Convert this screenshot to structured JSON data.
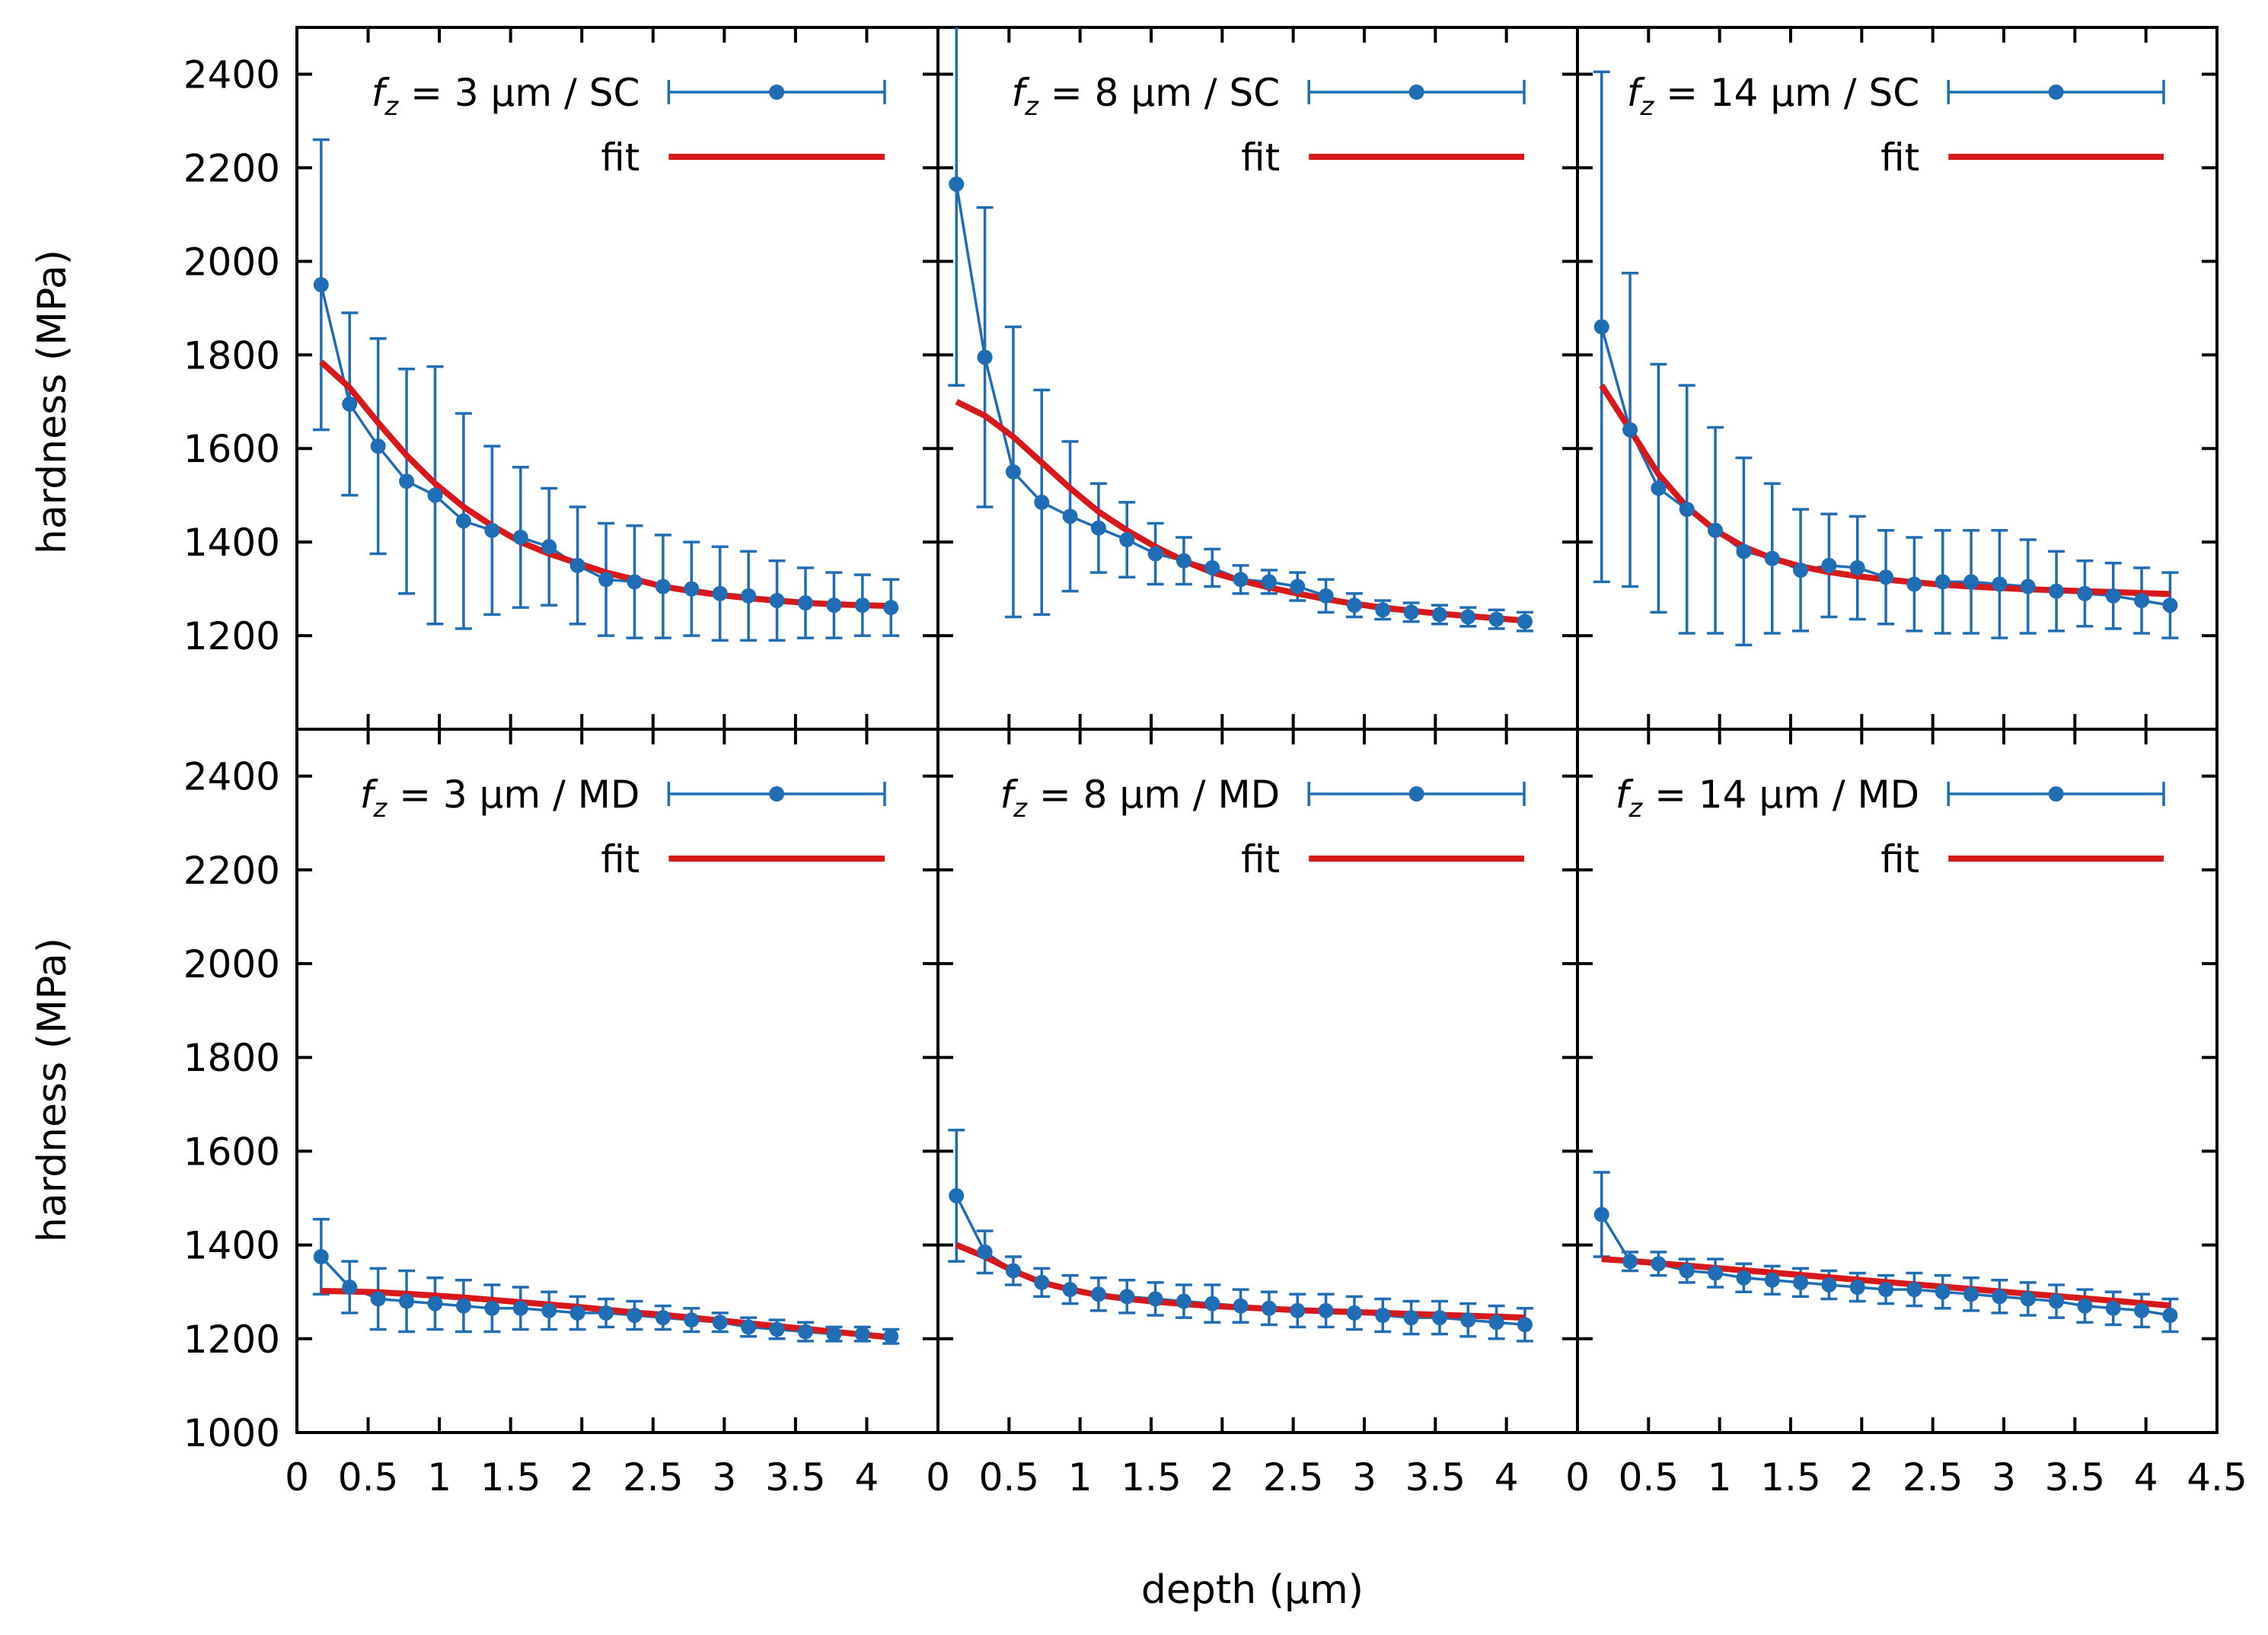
{
  "colors": {
    "data": "#1f6db5",
    "fit": "#d7191c",
    "axis": "#000000"
  },
  "chart_data": {
    "type": "scatter",
    "layout": "2x3 panel grid, shared axes",
    "xlabel": "depth (µm)",
    "ylabel": "hardness (MPa)",
    "xlim": [
      0,
      4.5
    ],
    "ylim_top_row": [
      1000,
      2500
    ],
    "ylim_bottom_row": [
      1000,
      2500
    ],
    "x_ticks": [
      0,
      0.5,
      1,
      1.5,
      2,
      2.5,
      3,
      3.5,
      4,
      4.5
    ],
    "x_tick_labels_left": [
      "0",
      "0.5",
      "1",
      "1.5",
      "2",
      "2.5",
      "3",
      "3.5",
      "4"
    ],
    "x_tick_labels_right": [
      "0",
      "0.5",
      "1",
      "1.5",
      "2",
      "2.5",
      "3",
      "3.5",
      "4",
      "4.5"
    ],
    "y_ticks_top": [
      1200,
      1400,
      1600,
      1800,
      2000,
      2200,
      2400
    ],
    "y_ticks_bottom": [
      1000,
      1200,
      1400,
      1600,
      1800,
      2000,
      2200,
      2400
    ],
    "legend": {
      "placement": "top-right",
      "fit_label": "fit"
    },
    "panels": [
      {
        "label_f": "f",
        "label_sub": "z",
        "label_rest": " = 3 µm / SC",
        "x": [
          0.17,
          0.37,
          0.57,
          0.77,
          0.97,
          1.17,
          1.37,
          1.57,
          1.77,
          1.97,
          2.17,
          2.37,
          2.57,
          2.77,
          2.97,
          3.17,
          3.37,
          3.57,
          3.77,
          3.97,
          4.17
        ],
        "y": [
          1950,
          1695,
          1605,
          1530,
          1500,
          1445,
          1425,
          1410,
          1390,
          1350,
          1320,
          1315,
          1305,
          1300,
          1290,
          1285,
          1275,
          1270,
          1265,
          1265,
          1260
        ],
        "err": [
          310,
          195,
          230,
          240,
          275,
          230,
          180,
          150,
          125,
          125,
          120,
          120,
          110,
          100,
          100,
          95,
          85,
          75,
          70,
          65,
          60
        ],
        "fit_x": [
          0.17,
          0.37,
          0.57,
          0.77,
          0.97,
          1.17,
          1.37,
          1.57,
          1.77,
          1.97,
          2.17,
          2.37,
          2.57,
          2.77,
          2.97,
          3.17,
          3.37,
          3.57,
          3.77,
          3.97,
          4.17
        ],
        "fit_y": [
          1785,
          1730,
          1655,
          1585,
          1525,
          1475,
          1435,
          1400,
          1375,
          1355,
          1335,
          1320,
          1305,
          1295,
          1287,
          1280,
          1275,
          1270,
          1267,
          1265,
          1263
        ]
      },
      {
        "label_f": "f",
        "label_sub": "z",
        "label_rest": " = 8 µm / SC",
        "x": [
          0.13,
          0.33,
          0.53,
          0.73,
          0.93,
          1.13,
          1.33,
          1.53,
          1.73,
          1.93,
          2.13,
          2.33,
          2.53,
          2.73,
          2.93,
          3.13,
          3.33,
          3.53,
          3.73,
          3.93,
          4.13
        ],
        "y": [
          2165,
          1795,
          1550,
          1485,
          1455,
          1430,
          1405,
          1375,
          1360,
          1345,
          1320,
          1315,
          1305,
          1285,
          1265,
          1255,
          1250,
          1245,
          1240,
          1235,
          1230
        ],
        "err": [
          430,
          320,
          310,
          240,
          160,
          95,
          80,
          65,
          50,
          40,
          30,
          25,
          30,
          35,
          25,
          20,
          20,
          20,
          20,
          20,
          20
        ],
        "fit_x": [
          0.13,
          0.33,
          0.53,
          0.73,
          0.93,
          1.13,
          1.33,
          1.53,
          1.73,
          1.93,
          2.13,
          2.33,
          2.53,
          2.73,
          2.93,
          3.13,
          3.33,
          3.53,
          3.73,
          3.93,
          4.13
        ],
        "fit_y": [
          1700,
          1670,
          1625,
          1570,
          1515,
          1465,
          1425,
          1390,
          1360,
          1335,
          1318,
          1303,
          1290,
          1278,
          1268,
          1260,
          1253,
          1247,
          1242,
          1237,
          1232
        ]
      },
      {
        "label_f": "f",
        "label_sub": "z",
        "label_rest": " = 14 µm / SC",
        "x": [
          0.17,
          0.37,
          0.57,
          0.77,
          0.97,
          1.17,
          1.37,
          1.57,
          1.77,
          1.97,
          2.17,
          2.37,
          2.57,
          2.77,
          2.97,
          3.17,
          3.37,
          3.57,
          3.77,
          3.97,
          4.17
        ],
        "y": [
          1860,
          1640,
          1515,
          1470,
          1425,
          1380,
          1365,
          1340,
          1350,
          1345,
          1325,
          1310,
          1315,
          1315,
          1310,
          1305,
          1295,
          1290,
          1285,
          1275,
          1265
        ],
        "err": [
          545,
          335,
          265,
          265,
          220,
          200,
          160,
          130,
          110,
          110,
          100,
          100,
          110,
          110,
          115,
          100,
          85,
          70,
          70,
          70,
          70
        ],
        "fit_x": [
          0.17,
          0.37,
          0.57,
          0.77,
          0.97,
          1.17,
          1.37,
          1.57,
          1.77,
          1.97,
          2.17,
          2.37,
          2.57,
          2.77,
          2.97,
          3.17,
          3.37,
          3.57,
          3.77,
          3.97,
          4.17
        ],
        "fit_y": [
          1735,
          1640,
          1545,
          1475,
          1425,
          1390,
          1365,
          1348,
          1336,
          1327,
          1320,
          1314,
          1309,
          1305,
          1302,
          1299,
          1297,
          1295,
          1293,
          1291,
          1289
        ]
      },
      {
        "label_f": "f",
        "label_sub": "z",
        "label_rest": " = 3 µm / MD",
        "x": [
          0.17,
          0.37,
          0.57,
          0.77,
          0.97,
          1.17,
          1.37,
          1.57,
          1.77,
          1.97,
          2.17,
          2.37,
          2.57,
          2.77,
          2.97,
          3.17,
          3.37,
          3.57,
          3.77,
          3.97,
          4.17
        ],
        "y": [
          1375,
          1310,
          1285,
          1280,
          1275,
          1270,
          1265,
          1265,
          1260,
          1255,
          1255,
          1250,
          1245,
          1240,
          1235,
          1225,
          1220,
          1215,
          1210,
          1210,
          1205
        ],
        "err": [
          80,
          55,
          65,
          65,
          55,
          55,
          50,
          45,
          40,
          35,
          30,
          30,
          25,
          25,
          20,
          20,
          20,
          20,
          15,
          15,
          15
        ],
        "fit_x": [
          0.17,
          0.37,
          0.57,
          0.77,
          0.97,
          1.17,
          1.37,
          1.57,
          1.77,
          1.97,
          2.17,
          2.37,
          2.57,
          2.77,
          2.97,
          3.17,
          3.37,
          3.57,
          3.77,
          3.97,
          4.17
        ],
        "fit_y": [
          1302,
          1301,
          1299,
          1296,
          1292,
          1288,
          1283,
          1278,
          1273,
          1268,
          1262,
          1256,
          1251,
          1245,
          1239,
          1233,
          1227,
          1221,
          1215,
          1209,
          1203
        ]
      },
      {
        "label_f": "f",
        "label_sub": "z",
        "label_rest": " = 8 µm / MD",
        "x": [
          0.13,
          0.33,
          0.53,
          0.73,
          0.93,
          1.13,
          1.33,
          1.53,
          1.73,
          1.93,
          2.13,
          2.33,
          2.53,
          2.73,
          2.93,
          3.13,
          3.33,
          3.53,
          3.73,
          3.93,
          4.13
        ],
        "y": [
          1505,
          1385,
          1345,
          1320,
          1305,
          1295,
          1290,
          1285,
          1280,
          1275,
          1270,
          1265,
          1260,
          1260,
          1255,
          1250,
          1245,
          1245,
          1240,
          1235,
          1230
        ],
        "err": [
          140,
          45,
          30,
          30,
          30,
          35,
          35,
          35,
          35,
          40,
          35,
          35,
          35,
          35,
          35,
          35,
          35,
          35,
          35,
          35,
          35
        ],
        "fit_x": [
          0.13,
          0.33,
          0.53,
          0.73,
          0.93,
          1.13,
          1.33,
          1.53,
          1.73,
          1.93,
          2.13,
          2.33,
          2.53,
          2.73,
          2.93,
          3.13,
          3.33,
          3.53,
          3.73,
          3.93,
          4.13
        ],
        "fit_y": [
          1400,
          1375,
          1345,
          1320,
          1305,
          1293,
          1285,
          1279,
          1274,
          1270,
          1267,
          1264,
          1261,
          1259,
          1257,
          1255,
          1253,
          1251,
          1249,
          1247,
          1245
        ]
      },
      {
        "label_f": "f",
        "label_sub": "z",
        "label_rest": " = 14 µm / MD",
        "x": [
          0.17,
          0.37,
          0.57,
          0.77,
          0.97,
          1.17,
          1.37,
          1.57,
          1.77,
          1.97,
          2.17,
          2.37,
          2.57,
          2.77,
          2.97,
          3.17,
          3.37,
          3.57,
          3.77,
          3.97,
          4.17
        ],
        "y": [
          1465,
          1365,
          1360,
          1345,
          1340,
          1330,
          1325,
          1320,
          1315,
          1310,
          1305,
          1305,
          1300,
          1295,
          1290,
          1285,
          1280,
          1270,
          1265,
          1260,
          1250
        ],
        "err": [
          90,
          20,
          25,
          25,
          30,
          30,
          30,
          30,
          30,
          30,
          30,
          35,
          35,
          35,
          35,
          35,
          35,
          35,
          35,
          35,
          35
        ],
        "fit_x": [
          0.17,
          0.37,
          0.57,
          0.77,
          0.97,
          1.17,
          1.37,
          1.57,
          1.77,
          1.97,
          2.17,
          2.37,
          2.57,
          2.77,
          2.97,
          3.17,
          3.37,
          3.57,
          3.77,
          3.97,
          4.17
        ],
        "fit_y": [
          1370,
          1366,
          1361,
          1356,
          1351,
          1346,
          1341,
          1336,
          1331,
          1326,
          1321,
          1316,
          1311,
          1306,
          1301,
          1296,
          1291,
          1286,
          1281,
          1276,
          1271
        ]
      }
    ]
  }
}
